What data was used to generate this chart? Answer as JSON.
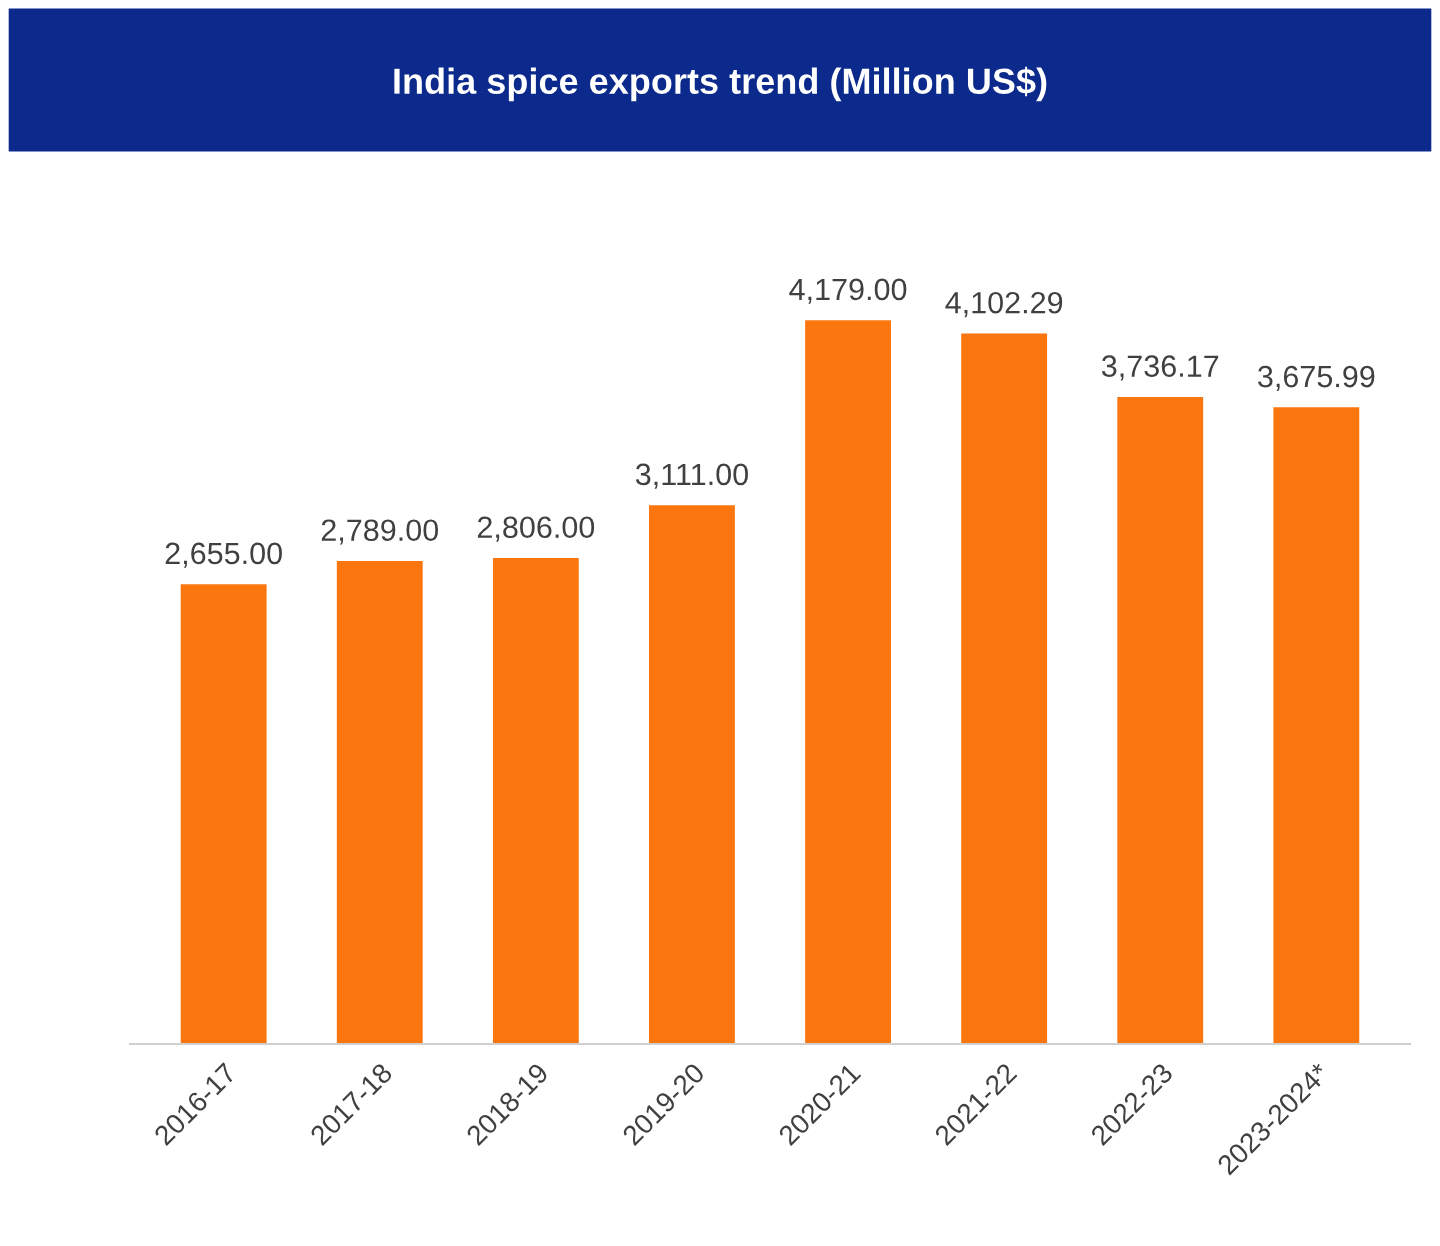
{
  "chart_data": {
    "type": "bar",
    "title": "India spice exports trend (Million US$)",
    "categories": [
      "2016-17",
      "2017-18",
      "2018-19",
      "2019-20",
      "2020-21",
      "2021-22",
      "2022-23",
      "2023-2024*"
    ],
    "values": [
      2655.0,
      2789.0,
      2806.0,
      3111.0,
      4179.0,
      4102.29,
      3736.17,
      3675.99
    ],
    "value_labels": [
      "2,655.00",
      "2,789.00",
      "2,806.00",
      "3,111.00",
      "4,179.00",
      "4,102.29",
      "3,736.17",
      "3,675.99"
    ],
    "color": "#fb760f",
    "grid": false,
    "legend": false
  }
}
